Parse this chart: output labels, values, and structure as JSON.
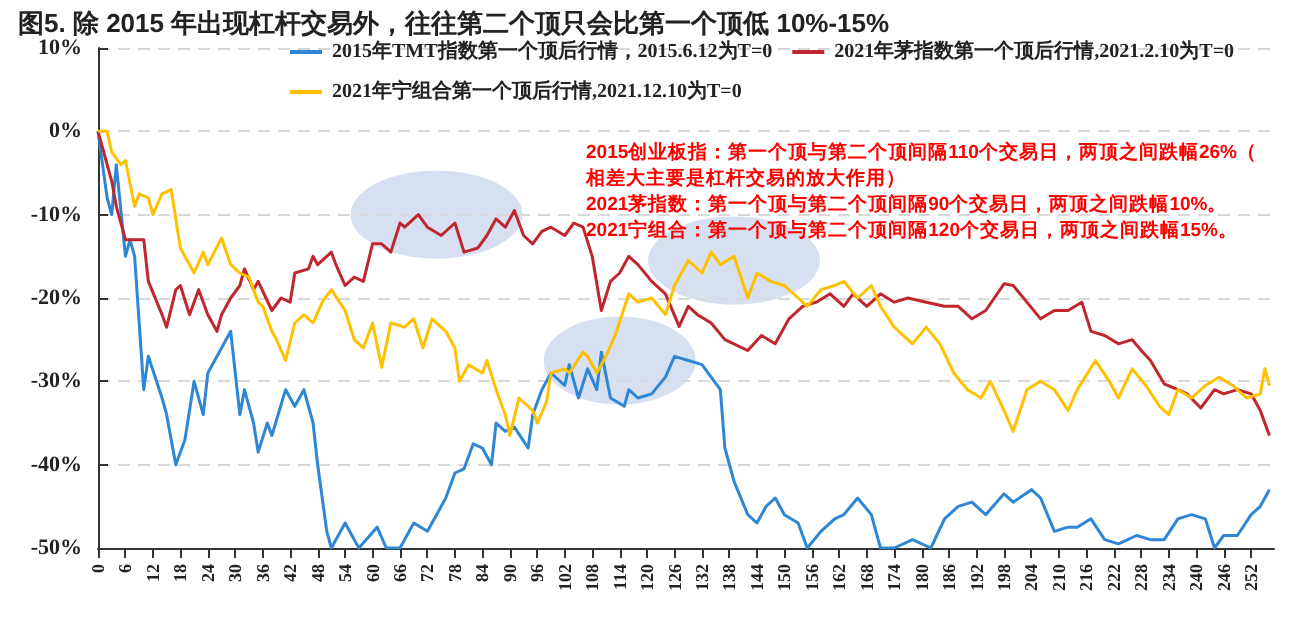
{
  "chart_data": {
    "type": "line",
    "title": "图5. 除 2015 年出现杠杆交易外，往往第二个顶只会比第一个顶低 10%-15%",
    "annotations": [
      "2015创业板指：第一个顶与第二个顶间隔110个交易日，两顶之间跌幅26%（相差大主要是杠杆交易的放大作用）",
      "2021茅指数：第一个顶与第二个顶间隔90个交易日，两顶之间跌幅10%。",
      "2021宁组合：第一个顶与第二个顶间隔120个交易日，两顶之间跌幅15%。"
    ],
    "series": [
      {
        "name": "2015年TMT指数第一个顶后行情，2015.6.12为T=0",
        "color": "#2e86d4",
        "x": [
          0,
          2,
          3,
          4,
          6,
          7,
          8,
          10,
          11,
          14,
          15,
          17,
          19,
          21,
          23,
          24,
          27,
          29,
          31,
          32,
          34,
          35,
          37,
          38,
          41,
          43,
          45,
          47,
          48,
          50,
          51,
          54,
          57,
          61,
          63,
          64,
          66,
          69,
          72,
          74,
          76,
          78,
          80,
          82,
          84,
          86,
          87,
          89,
          91,
          94,
          95,
          97,
          99,
          102,
          103,
          105,
          107,
          109,
          110,
          112,
          115,
          116,
          118,
          121,
          124,
          126,
          129,
          132,
          134,
          136,
          137,
          139,
          142,
          144,
          146,
          148,
          150,
          153,
          155,
          158,
          161,
          163,
          166,
          169,
          171,
          174,
          178,
          182,
          185,
          188,
          191,
          194,
          198,
          200,
          204,
          206,
          209,
          212,
          214,
          217,
          220,
          223,
          227,
          230,
          233,
          236,
          239,
          242,
          244,
          246,
          249,
          252,
          254,
          256
        ],
        "values": [
          0,
          -8,
          -10,
          -4,
          -15,
          -13,
          -15,
          -31,
          -27,
          -32,
          -34,
          -40,
          -37,
          -30,
          -34,
          -29,
          -26,
          -24,
          -34,
          -31,
          -35,
          -38.5,
          -35,
          -36.5,
          -31,
          -33,
          -31,
          -35,
          -40,
          -48,
          -50,
          -47,
          -50,
          -47.5,
          -50,
          -50,
          -50,
          -47,
          -48,
          -46,
          -44,
          -41,
          -40.5,
          -37.5,
          -38,
          -40,
          -35,
          -36,
          -35.5,
          -38,
          -34,
          -31,
          -29,
          -30.5,
          -28,
          -32,
          -28.5,
          -31,
          -26.5,
          -32,
          -33,
          -31,
          -32,
          -31.5,
          -29.5,
          -27,
          -27.5,
          -28,
          -29.5,
          -31,
          -38,
          -42,
          -46,
          -47,
          -45,
          -44,
          -46,
          -47,
          -50,
          -48,
          -46.5,
          -46,
          -44,
          -46,
          -50,
          -50,
          -49,
          -50,
          -46.5,
          -45,
          -44.5,
          -46,
          -43.5,
          -44.5,
          -43,
          -44,
          -48,
          -47.5,
          -47.5,
          -46.5,
          -49,
          -49.5,
          -48.5,
          -49,
          -49,
          -46.5,
          -46,
          -46.5,
          -50,
          -48.5,
          -48.5,
          -46,
          -45,
          -43
        ]
      },
      {
        "name": "2021年茅指数第一个顶后行情,2021.2.10为T=0",
        "color": "#c0262d",
        "x": [
          0,
          1,
          3,
          4,
          6,
          8,
          10,
          11,
          14,
          15,
          17,
          18,
          20,
          22,
          24,
          26,
          27,
          29,
          31,
          32,
          34,
          35,
          38,
          40,
          42,
          43,
          46,
          47,
          48,
          51,
          52,
          54,
          56,
          58,
          60,
          62,
          64,
          66,
          67,
          70,
          72,
          75,
          78,
          80,
          83,
          85,
          87,
          89,
          91,
          93,
          95,
          97,
          99,
          102,
          104,
          106,
          108,
          110,
          112,
          114,
          116,
          118,
          121,
          124,
          127,
          129,
          131,
          134,
          137,
          142,
          145,
          148,
          151,
          154,
          157,
          160,
          163,
          165,
          168,
          171,
          174,
          177,
          181,
          185,
          188,
          191,
          194,
          198,
          200,
          203,
          206,
          209,
          212,
          215,
          217,
          220,
          223,
          226,
          228,
          230,
          233,
          236,
          238,
          241,
          244,
          246,
          249,
          252,
          254,
          256
        ],
        "values": [
          0,
          -2,
          -6,
          -9,
          -13,
          -13,
          -13,
          -18,
          -22,
          -23.5,
          -19,
          -18.5,
          -22,
          -19,
          -22,
          -24,
          -22,
          -20,
          -18.5,
          -16.5,
          -19,
          -18,
          -21.5,
          -20,
          -20.5,
          -17,
          -16.5,
          -15,
          -16,
          -14.5,
          -16,
          -18.5,
          -17.5,
          -18,
          -13.5,
          -13.5,
          -14.5,
          -11,
          -11.5,
          -10,
          -11.5,
          -12.5,
          -11,
          -14.5,
          -14,
          -12.5,
          -10.5,
          -11.5,
          -9.5,
          -12.5,
          -13.5,
          -12,
          -11.5,
          -12.5,
          -11,
          -11.5,
          -15,
          -21.5,
          -18,
          -17,
          -15,
          -16,
          -18,
          -19.5,
          -23.4,
          -21,
          -22,
          -23,
          -25,
          -26.3,
          -24.5,
          -25.5,
          -22.5,
          -21,
          -20.5,
          -19.5,
          -21,
          -19.5,
          -21,
          -19.5,
          -20.5,
          -20,
          -20.5,
          -21,
          -21,
          -22.5,
          -21.5,
          -18.3,
          -18.5,
          -20.5,
          -22.5,
          -21.5,
          -21.5,
          -20.5,
          -24,
          -24.5,
          -25.5,
          -25,
          -26.3,
          -27.5,
          -30.3,
          -31,
          -31.5,
          -33.2,
          -31,
          -31.5,
          -31,
          -31.5,
          -33.5,
          -36.5
        ]
      },
      {
        "name": "2021年宁组合第一个顶后行情,2021.12.10为T=0",
        "color": "#ffc000",
        "x": [
          0,
          2,
          3,
          5,
          6,
          8,
          9,
          11,
          12,
          14,
          16,
          18,
          21,
          23,
          24,
          27,
          29,
          31,
          33,
          35,
          36,
          38,
          39,
          41,
          43,
          45,
          47,
          49,
          51,
          54,
          56,
          58,
          60,
          62,
          64,
          67,
          69,
          71,
          73,
          76,
          78,
          79,
          81,
          84,
          85,
          87,
          89,
          90,
          92,
          95,
          96,
          98,
          99,
          102,
          103,
          106,
          107,
          109,
          111,
          113,
          116,
          118,
          121,
          124,
          126,
          129,
          132,
          134,
          136,
          139,
          142,
          144,
          147,
          150,
          153,
          155,
          158,
          161,
          163,
          166,
          169,
          171,
          174,
          178,
          181,
          184,
          187,
          190,
          193,
          195,
          198,
          200,
          203,
          206,
          209,
          212,
          214,
          218,
          221,
          223,
          226,
          229,
          232,
          234,
          236,
          239,
          242,
          245,
          248,
          251,
          254,
          255,
          256
        ],
        "values": [
          0,
          0,
          -2.5,
          -4,
          -3.5,
          -9,
          -7.5,
          -8,
          -10,
          -7.5,
          -7,
          -14,
          -17,
          -14.5,
          -16,
          -12.8,
          -16,
          -17,
          -17.5,
          -20.5,
          -21,
          -24,
          -25,
          -27.5,
          -23,
          -22,
          -23,
          -20.5,
          -19,
          -21.5,
          -25,
          -26,
          -23,
          -28.3,
          -23,
          -23.5,
          -22.5,
          -26,
          -22.5,
          -24,
          -26,
          -30,
          -28,
          -29,
          -27.5,
          -31,
          -34,
          -36.5,
          -32,
          -33.5,
          -35,
          -32.5,
          -29,
          -28.5,
          -29,
          -26.5,
          -27,
          -29,
          -27,
          -24.5,
          -19.5,
          -20.5,
          -20,
          -22,
          -18.5,
          -15.5,
          -17,
          -14.5,
          -16,
          -15,
          -20,
          -17,
          -18,
          -18.5,
          -20,
          -21,
          -19,
          -18.5,
          -18,
          -20,
          -18.5,
          -21,
          -23.5,
          -25.5,
          -23.5,
          -25.5,
          -29,
          -31,
          -32,
          -30,
          -33.5,
          -36,
          -31,
          -30,
          -31,
          -33.5,
          -31,
          -27.5,
          -30,
          -32,
          -28.5,
          -30.5,
          -33,
          -34,
          -31,
          -32,
          -30.5,
          -29.5,
          -30.5,
          -32,
          -31.5,
          -28.5,
          -30.5
        ]
      }
    ],
    "xlim": [
      0,
      257
    ],
    "xticks": [
      0,
      6,
      12,
      18,
      24,
      30,
      36,
      42,
      48,
      54,
      60,
      66,
      72,
      78,
      84,
      90,
      96,
      102,
      108,
      114,
      120,
      126,
      132,
      138,
      144,
      150,
      156,
      162,
      168,
      174,
      180,
      186,
      192,
      198,
      204,
      210,
      216,
      222,
      228,
      234,
      240,
      246,
      252
    ],
    "ylim": [
      -50,
      10
    ],
    "yticks": [
      {
        "value": -50,
        "label": "-50%"
      },
      {
        "value": -40,
        "label": "-40%"
      },
      {
        "value": -30,
        "label": "-30%"
      },
      {
        "value": -20,
        "label": "-20%"
      },
      {
        "value": -10,
        "label": "-10%"
      },
      {
        "value": 0,
        "label": "0%"
      },
      {
        "value": 10,
        "label": "10%"
      }
    ],
    "grid": "y",
    "legend": "top",
    "marker": "none",
    "line_style": "solid"
  }
}
